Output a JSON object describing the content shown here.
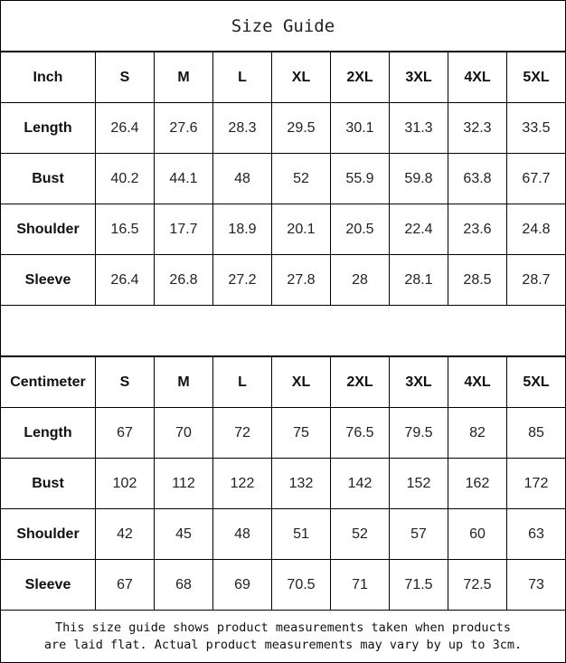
{
  "title": "Size Guide",
  "sizes": [
    "S",
    "M",
    "L",
    "XL",
    "2XL",
    "3XL",
    "4XL",
    "5XL"
  ],
  "tables": [
    {
      "unit": "Inch",
      "rows": [
        {
          "label": "Length",
          "values": [
            "26.4",
            "27.6",
            "28.3",
            "29.5",
            "30.1",
            "31.3",
            "32.3",
            "33.5"
          ]
        },
        {
          "label": "Bust",
          "values": [
            "40.2",
            "44.1",
            "48",
            "52",
            "55.9",
            "59.8",
            "63.8",
            "67.7"
          ]
        },
        {
          "label": "Shoulder",
          "values": [
            "16.5",
            "17.7",
            "18.9",
            "20.1",
            "20.5",
            "22.4",
            "23.6",
            "24.8"
          ]
        },
        {
          "label": "Sleeve",
          "values": [
            "26.4",
            "26.8",
            "27.2",
            "27.8",
            "28",
            "28.1",
            "28.5",
            "28.7"
          ]
        }
      ]
    },
    {
      "unit": "Centimeter",
      "rows": [
        {
          "label": "Length",
          "values": [
            "67",
            "70",
            "72",
            "75",
            "76.5",
            "79.5",
            "82",
            "85"
          ]
        },
        {
          "label": "Bust",
          "values": [
            "102",
            "112",
            "122",
            "132",
            "142",
            "152",
            "162",
            "172"
          ]
        },
        {
          "label": "Shoulder",
          "values": [
            "42",
            "45",
            "48",
            "51",
            "52",
            "57",
            "60",
            "63"
          ]
        },
        {
          "label": "Sleeve",
          "values": [
            "67",
            "68",
            "69",
            "70.5",
            "71",
            "71.5",
            "72.5",
            "73"
          ]
        }
      ]
    }
  ],
  "footer": {
    "line1": "This size guide shows product measurements taken when products",
    "line2": "are laid flat. Actual product measurements may vary by up to 3cm."
  }
}
